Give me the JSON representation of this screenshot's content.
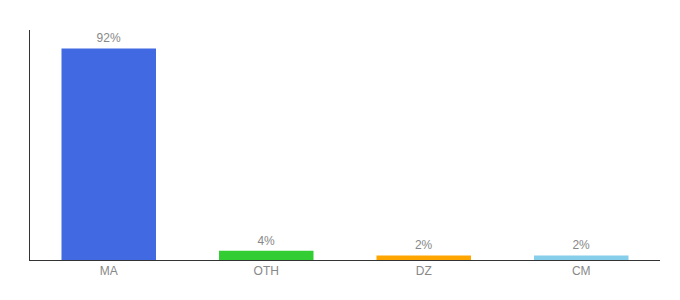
{
  "chart_data": {
    "type": "bar",
    "categories": [
      "MA",
      "OTH",
      "DZ",
      "CM"
    ],
    "values": [
      92,
      4,
      2,
      2
    ],
    "value_labels": [
      "92%",
      "4%",
      "2%",
      "2%"
    ],
    "colors": [
      "#4169e1",
      "#32cd32",
      "#ffa500",
      "#87ceeb"
    ],
    "ylim": [
      0,
      100
    ],
    "grid": false,
    "data_labels": true,
    "tick_labels": "x"
  }
}
